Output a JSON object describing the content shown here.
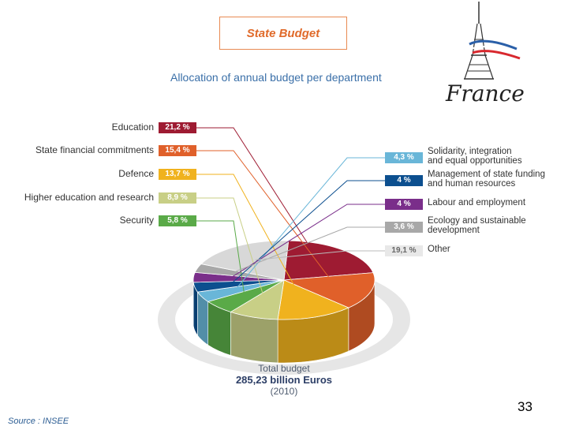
{
  "header": {
    "title": "State Budget",
    "subtitle": "Allocation of annual budget per department",
    "logo_text": "France"
  },
  "chart_data": {
    "type": "pie",
    "slices": [
      {
        "label": "Education",
        "value": 21.2,
        "display": "21,2 %",
        "color": "#9e1b32"
      },
      {
        "label": "State financial commitments",
        "value": 15.4,
        "display": "15,4 %",
        "color": "#e0602a"
      },
      {
        "label": "Defence",
        "value": 13.7,
        "display": "13,7 %",
        "color": "#f0b21e"
      },
      {
        "label": "Higher education and research",
        "value": 8.9,
        "display": "8,9 %",
        "color": "#c8cf86"
      },
      {
        "label": "Security",
        "value": 5.8,
        "display": "5,8 %",
        "color": "#5aaa48"
      },
      {
        "label": "Solidarity, integration and equal opportunities",
        "value": 4.3,
        "display": "4,3 %",
        "color": "#69b6d8"
      },
      {
        "label": "Management of state funding and human resources",
        "value": 4.0,
        "display": "4 %",
        "color": "#0c4f8f"
      },
      {
        "label": "Labour and employment",
        "value": 4.0,
        "display": "4 %",
        "color": "#7a2e8a"
      },
      {
        "label": "Ecology and sustainable development",
        "value": 3.6,
        "display": "3,6 %",
        "color": "#a8a8a8"
      },
      {
        "label": "Other",
        "value": 19.1,
        "display": "19,1 %",
        "color": "#d8d8d8"
      }
    ]
  },
  "labels": {
    "left": [
      {
        "text": "Education",
        "badge": "21,2 %",
        "color": "#9e1b32"
      },
      {
        "text": "State financial commitments",
        "badge": "15,4 %",
        "color": "#e0602a"
      },
      {
        "text": "Defence",
        "badge": "13,7 %",
        "color": "#f0b21e"
      },
      {
        "text": "Higher education and research",
        "badge": "8,9 %",
        "color": "#c8cf86"
      },
      {
        "text": "Security",
        "badge": "5,8 %",
        "color": "#5aaa48"
      }
    ],
    "right": [
      {
        "line1": "Solidarity, integration",
        "line2": "and equal opportunities",
        "badge": "4,3 %",
        "color": "#69b6d8"
      },
      {
        "line1": "Management of state funding",
        "line2": "and human resources",
        "badge": "4 %",
        "color": "#0c4f8f"
      },
      {
        "line1": "Labour and employment",
        "line2": "",
        "badge": "4 %",
        "color": "#7a2e8a"
      },
      {
        "line1": "Ecology and sustainable",
        "line2": "development",
        "badge": "3,6 %",
        "color": "#a8a8a8"
      },
      {
        "line1": "Other",
        "line2": "",
        "badge": "19,1 %",
        "color": "#e8e8e8"
      }
    ]
  },
  "total": {
    "line1": "Total budget",
    "line2": "285,23 billion Euros",
    "line3": "(2010)"
  },
  "footer": {
    "page_number": "33",
    "source": "Source : INSEE"
  }
}
